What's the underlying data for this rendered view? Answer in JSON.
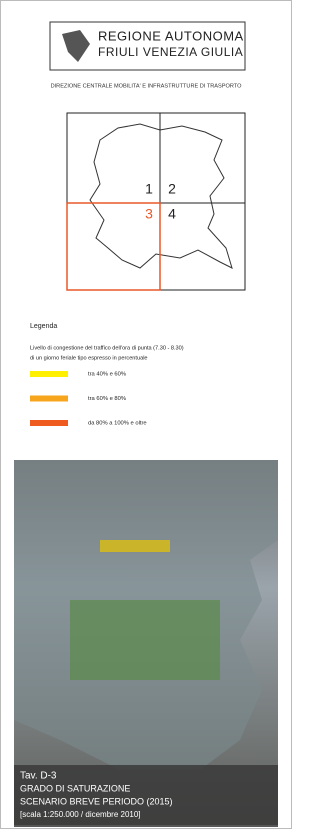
{
  "header": {
    "logo_line1": "REGIONE AUTONOMA",
    "logo_line2": "FRIULI VENEZIA GIULIA",
    "department": "DIREZIONE CENTRALE MOBILITA' E INFRASTRUTTURE DI TRASPORTO"
  },
  "map": {
    "tiles": [
      "1",
      "2",
      "3",
      "4"
    ]
  },
  "legend": {
    "title": "Legenda",
    "description": [
      "Livello di congestione del traffico dell'ora di punta (7.30 - 8.30)",
      "di un giorno feriale tipo espresso in percentuale"
    ],
    "items": [
      {
        "label": "tra 40% e 60%",
        "color": "#ffef00"
      },
      {
        "label": "tra 60% e 80%",
        "color": "#f7a51c"
      },
      {
        "label": "da 80% a 100% e oltre",
        "color": "#ef5a1e"
      }
    ]
  },
  "caption": {
    "code": "Tav. D-3",
    "title": "GRADO DI SATURAZIONE",
    "subtitle": "SCENARIO BREVE PERIODO (2015)",
    "scale": "[scala 1:250.000 / dicembre 2010]"
  }
}
